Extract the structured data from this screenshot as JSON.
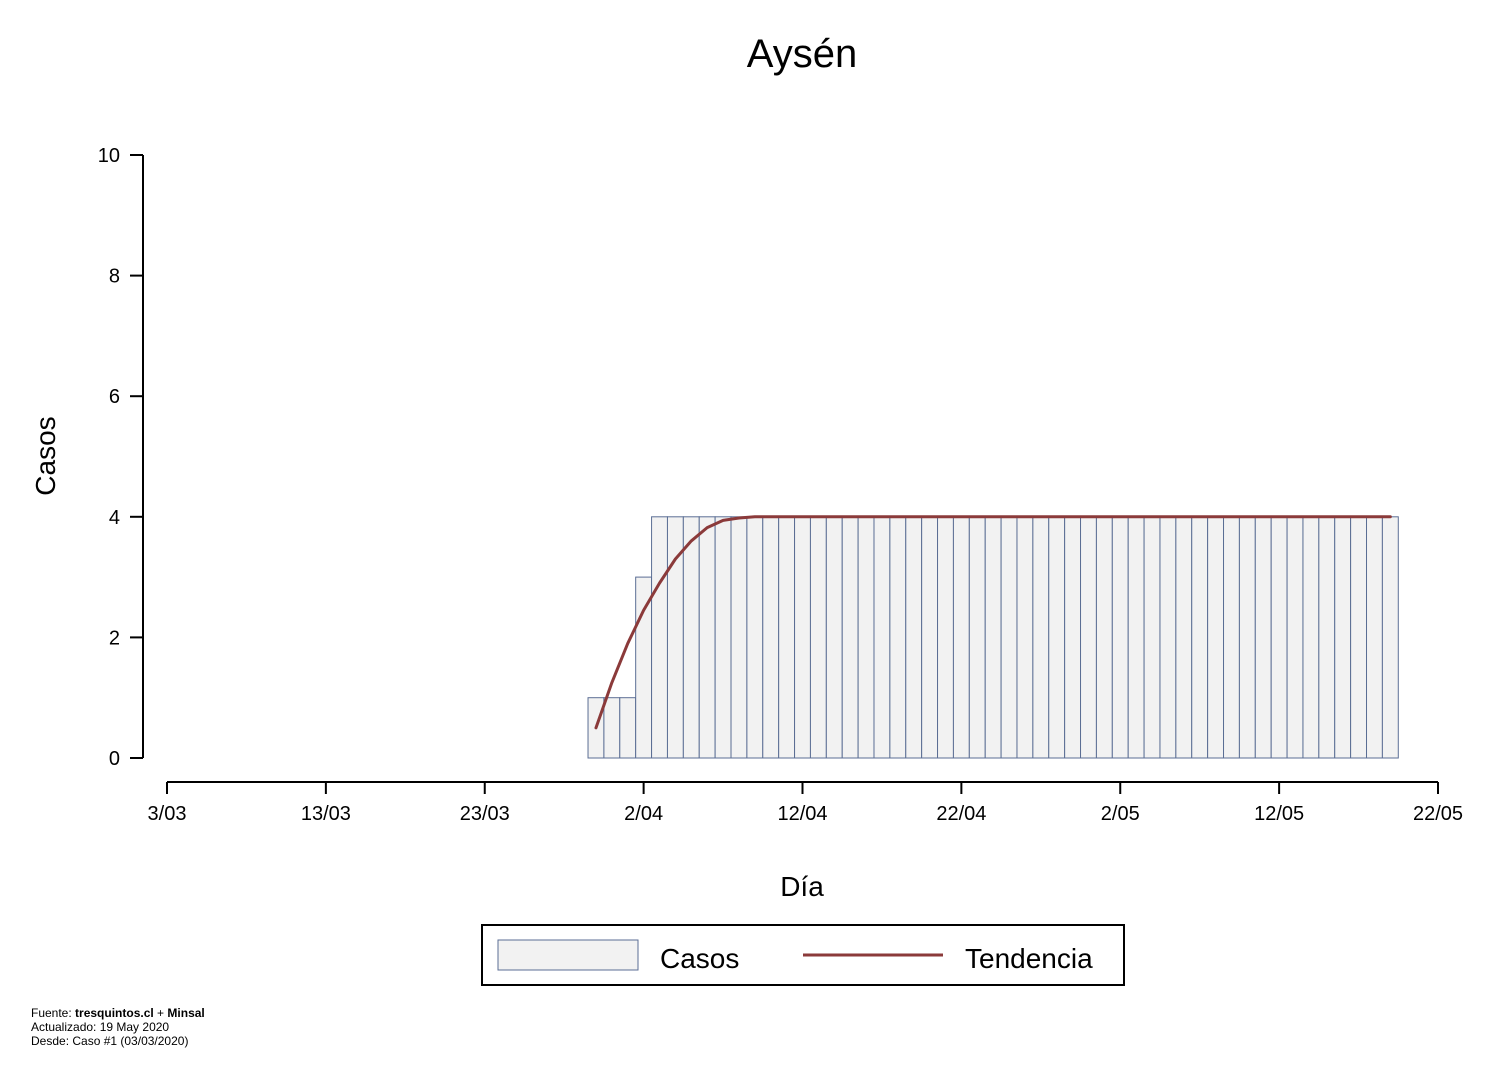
{
  "chart_data": {
    "type": "bar",
    "title": "Aysén",
    "xlabel": "Día",
    "ylabel": "Casos",
    "ylim": [
      0,
      10
    ],
    "yticks": [
      0,
      2,
      4,
      6,
      8,
      10
    ],
    "xlim": [
      "2020-03-03",
      "2020-05-22"
    ],
    "xticks": [
      "3/03",
      "13/03",
      "23/03",
      "2/04",
      "12/04",
      "22/04",
      "2/05",
      "12/05",
      "22/05"
    ],
    "xtick_dates": [
      "2020-03-03",
      "2020-03-13",
      "2020-03-23",
      "2020-04-02",
      "2020-04-12",
      "2020-04-22",
      "2020-05-02",
      "2020-05-12",
      "2020-05-22"
    ],
    "series": [
      {
        "name": "Casos",
        "type": "bar",
        "color": "#f2f2f2",
        "edge_color": "#5b6e94",
        "x": [
          "2020-03-30",
          "2020-03-31",
          "2020-04-01",
          "2020-04-02",
          "2020-04-03",
          "2020-04-04",
          "2020-04-05",
          "2020-04-06",
          "2020-04-07",
          "2020-04-08",
          "2020-04-09",
          "2020-04-10",
          "2020-04-11",
          "2020-04-12",
          "2020-04-13",
          "2020-04-14",
          "2020-04-15",
          "2020-04-16",
          "2020-04-17",
          "2020-04-18",
          "2020-04-19",
          "2020-04-20",
          "2020-04-21",
          "2020-04-22",
          "2020-04-23",
          "2020-04-24",
          "2020-04-25",
          "2020-04-26",
          "2020-04-27",
          "2020-04-28",
          "2020-04-29",
          "2020-04-30",
          "2020-05-01",
          "2020-05-02",
          "2020-05-03",
          "2020-05-04",
          "2020-05-05",
          "2020-05-06",
          "2020-05-07",
          "2020-05-08",
          "2020-05-09",
          "2020-05-10",
          "2020-05-11",
          "2020-05-12",
          "2020-05-13",
          "2020-05-14",
          "2020-05-15",
          "2020-05-16",
          "2020-05-17",
          "2020-05-18",
          "2020-05-19"
        ],
        "values": [
          1,
          1,
          1,
          3,
          4,
          4,
          4,
          4,
          4,
          4,
          4,
          4,
          4,
          4,
          4,
          4,
          4,
          4,
          4,
          4,
          4,
          4,
          4,
          4,
          4,
          4,
          4,
          4,
          4,
          4,
          4,
          4,
          4,
          4,
          4,
          4,
          4,
          4,
          4,
          4,
          4,
          4,
          4,
          4,
          4,
          4,
          4,
          4,
          4,
          4,
          4
        ]
      },
      {
        "name": "Tendencia",
        "type": "line",
        "color": "#8b3a3a",
        "x": [
          "2020-03-30",
          "2020-03-31",
          "2020-04-01",
          "2020-04-02",
          "2020-04-03",
          "2020-04-04",
          "2020-04-05",
          "2020-04-06",
          "2020-04-07",
          "2020-04-08",
          "2020-04-09",
          "2020-04-10",
          "2020-04-19",
          "2020-04-29",
          "2020-05-09",
          "2020-05-19"
        ],
        "values": [
          0.5,
          1.25,
          1.9,
          2.45,
          2.9,
          3.3,
          3.6,
          3.82,
          3.94,
          3.98,
          4.0,
          4.0,
          4.0,
          4.0,
          4.0,
          4.0
        ]
      }
    ],
    "legend": {
      "position": "bottom-center",
      "entries": [
        "Casos",
        "Tendencia"
      ]
    },
    "grid": false
  },
  "footer": {
    "source_prefix": "Fuente: ",
    "source_a": "tresquintos.cl",
    "source_sep": " + ",
    "source_b": "Minsal",
    "updated": "Actualizado: 19 May 2020",
    "since": "Desde: Caso #1  (03/03/2020)"
  }
}
